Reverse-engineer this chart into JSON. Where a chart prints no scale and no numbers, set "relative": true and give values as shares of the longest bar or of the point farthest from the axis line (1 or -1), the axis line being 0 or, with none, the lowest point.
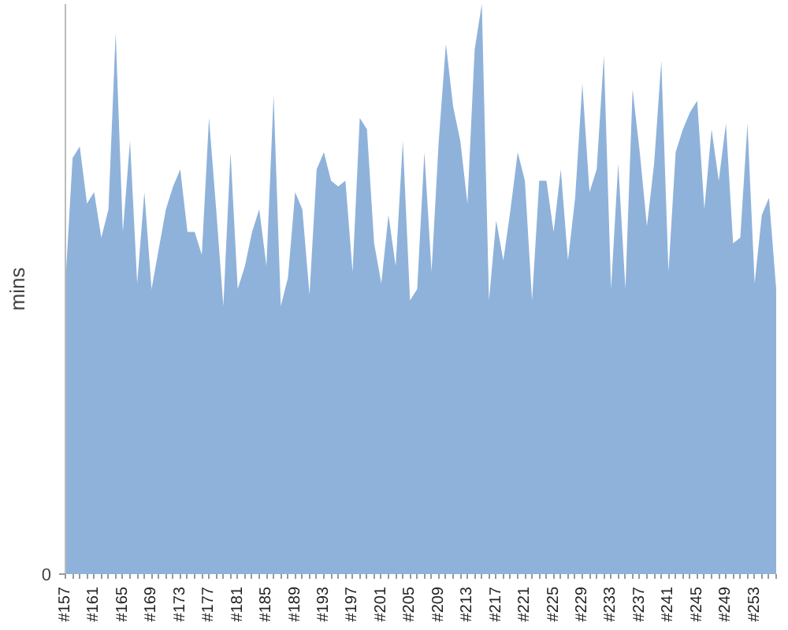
{
  "chart_data": {
    "type": "area",
    "relative": true,
    "ylabel": "mins",
    "color": "#8fb2da",
    "grid": false,
    "annotations": [
      "0"
    ],
    "categories": [
      "#157",
      null,
      null,
      null,
      "#161",
      null,
      null,
      null,
      "#165",
      null,
      null,
      null,
      "#169",
      null,
      null,
      null,
      "#173",
      null,
      null,
      null,
      "#177",
      null,
      null,
      null,
      "#181",
      null,
      null,
      null,
      "#185",
      null,
      null,
      null,
      "#189",
      null,
      null,
      null,
      "#193",
      null,
      null,
      null,
      "#197",
      null,
      null,
      null,
      "#201",
      null,
      null,
      null,
      "#205",
      null,
      null,
      null,
      "#209",
      null,
      null,
      null,
      "#213",
      null,
      null,
      null,
      "#217",
      null,
      null,
      null,
      "#221",
      null,
      null,
      null,
      "#225",
      null,
      null,
      null,
      "#229",
      null,
      null,
      null,
      "#233",
      null,
      null,
      null,
      "#237",
      null,
      null,
      null,
      "#241",
      null,
      null,
      null,
      "#245",
      null,
      null,
      null,
      "#249",
      null,
      null,
      null,
      "#253",
      null,
      null,
      null
    ],
    "values": [
      0.51,
      0.73,
      0.75,
      0.65,
      0.67,
      0.59,
      0.64,
      0.95,
      0.6,
      0.76,
      0.51,
      0.67,
      0.5,
      0.57,
      0.64,
      0.68,
      0.71,
      0.6,
      0.6,
      0.56,
      0.8,
      0.64,
      0.47,
      0.74,
      0.5,
      0.54,
      0.6,
      0.64,
      0.54,
      0.84,
      0.47,
      0.52,
      0.67,
      0.64,
      0.49,
      0.71,
      0.74,
      0.69,
      0.68,
      0.69,
      0.53,
      0.8,
      0.78,
      0.58,
      0.51,
      0.63,
      0.54,
      0.76,
      0.48,
      0.5,
      0.74,
      0.53,
      0.76,
      0.93,
      0.82,
      0.76,
      0.65,
      0.92,
      1.0,
      0.48,
      0.62,
      0.55,
      0.64,
      0.74,
      0.69,
      0.48,
      0.69,
      0.69,
      0.6,
      0.71,
      0.55,
      0.66,
      0.86,
      0.67,
      0.71,
      0.91,
      0.5,
      0.72,
      0.5,
      0.85,
      0.74,
      0.61,
      0.72,
      0.9,
      0.53,
      0.74,
      0.78,
      0.81,
      0.83,
      0.64,
      0.78,
      0.69,
      0.79,
      0.58,
      0.59,
      0.79,
      0.51,
      0.63,
      0.66,
      0.5
    ]
  }
}
